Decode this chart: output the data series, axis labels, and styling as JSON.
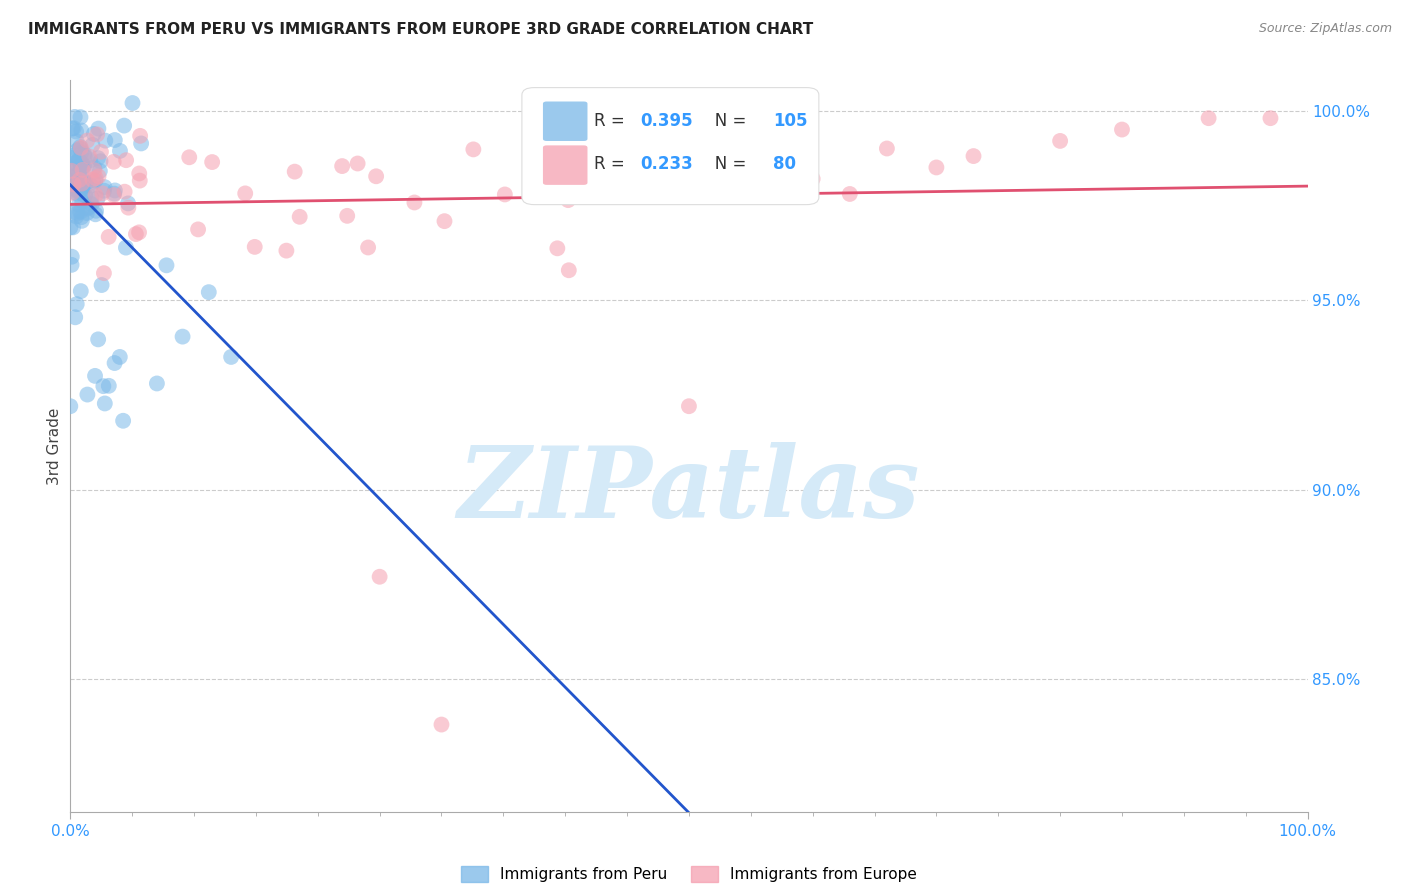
{
  "title": "IMMIGRANTS FROM PERU VS IMMIGRANTS FROM EUROPE 3RD GRADE CORRELATION CHART",
  "source": "Source: ZipAtlas.com",
  "ylabel": "3rd Grade",
  "series1_label": "Immigrants from Peru",
  "series2_label": "Immigrants from Europe",
  "series1_color": "#7ab8e8",
  "series2_color": "#f5a0b0",
  "series1_line_color": "#2255cc",
  "series2_line_color": "#e05070",
  "series1_R": 0.395,
  "series1_N": 105,
  "series2_R": 0.233,
  "series2_N": 80,
  "stat_color": "#3399ff",
  "watermark_text": "ZIPatlas",
  "watermark_color": "#d5eaf8",
  "background_color": "#ffffff",
  "grid_color": "#cccccc",
  "title_color": "#222222",
  "xmin": 0.0,
  "xmax": 1.0,
  "ymin": 0.815,
  "ymax": 1.008,
  "yticks": [
    0.85,
    0.9,
    0.95,
    1.0
  ],
  "ytick_labels": [
    "85.0%",
    "90.0%",
    "95.0%",
    "100.0%"
  ]
}
